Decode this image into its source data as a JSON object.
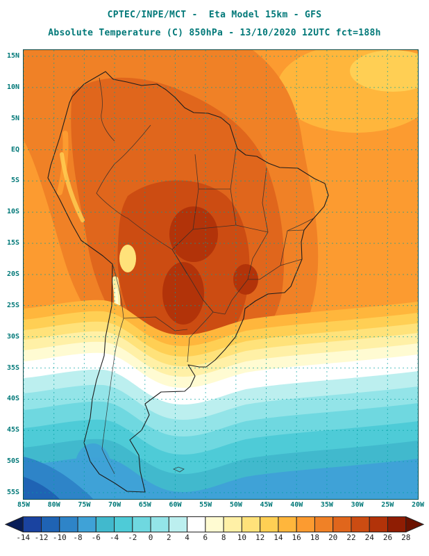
{
  "header": {
    "title_line1": "CPTEC/INPE/MCT -  Eta Model 15km - GFS",
    "title_line2": "Absolute Temperature (C) 850hPa - 13/10/2020 12UTC fct=188h"
  },
  "map": {
    "lat_labels": [
      "15N",
      "10N",
      "5N",
      "EQ",
      "5S",
      "10S",
      "15S",
      "20S",
      "25S",
      "30S",
      "35S",
      "40S",
      "45S",
      "50S",
      "55S"
    ],
    "lon_labels": [
      "85W",
      "80W",
      "75W",
      "70W",
      "65W",
      "60W",
      "55W",
      "50W",
      "45W",
      "40W",
      "35W",
      "30W",
      "25W",
      "20W"
    ]
  },
  "colorbar": {
    "labels": [
      "-14",
      "-12",
      "-10",
      "-8",
      "-6",
      "-4",
      "-2",
      "0",
      "2",
      "4",
      "6",
      "8",
      "10",
      "12",
      "14",
      "16",
      "18",
      "20",
      "22",
      "24",
      "26",
      "28"
    ],
    "colors": [
      "#081d58",
      "#1a43a0",
      "#1f63b4",
      "#2e84c8",
      "#3fa2d7",
      "#41b9cd",
      "#4ecbd7",
      "#6fd8e0",
      "#93e4e8",
      "#bcefef",
      "#ffffff",
      "#fffbd2",
      "#fff0a6",
      "#ffe27a",
      "#ffcf54",
      "#ffb63c",
      "#fc9b30",
      "#f08126",
      "#e0661c",
      "#cc4c12",
      "#b23309",
      "#8f1d03",
      "#6b1200"
    ]
  },
  "chart_data": {
    "type": "heatmap",
    "title": "Absolute Temperature (C) 850hPa",
    "source": "CPTEC/INPE/MCT",
    "model": "Eta Model 15km - GFS",
    "valid": "13/10/2020 12UTC fct=188h",
    "units": "C",
    "levels": [
      -14,
      -12,
      -10,
      -8,
      -6,
      -4,
      -2,
      0,
      2,
      4,
      6,
      8,
      10,
      12,
      14,
      16,
      18,
      20,
      22,
      24,
      26,
      28
    ],
    "lon_range": [
      "85W",
      "20W"
    ],
    "lat_range": [
      "15N",
      "55S"
    ],
    "field_summary": "Warm (22-26C) core over central Brazil/Paraguay; 14-20C across tropical oceans; sharp gradient 28-36S to cold (-6 to 4C) air over Patagonia and southern oceans"
  }
}
